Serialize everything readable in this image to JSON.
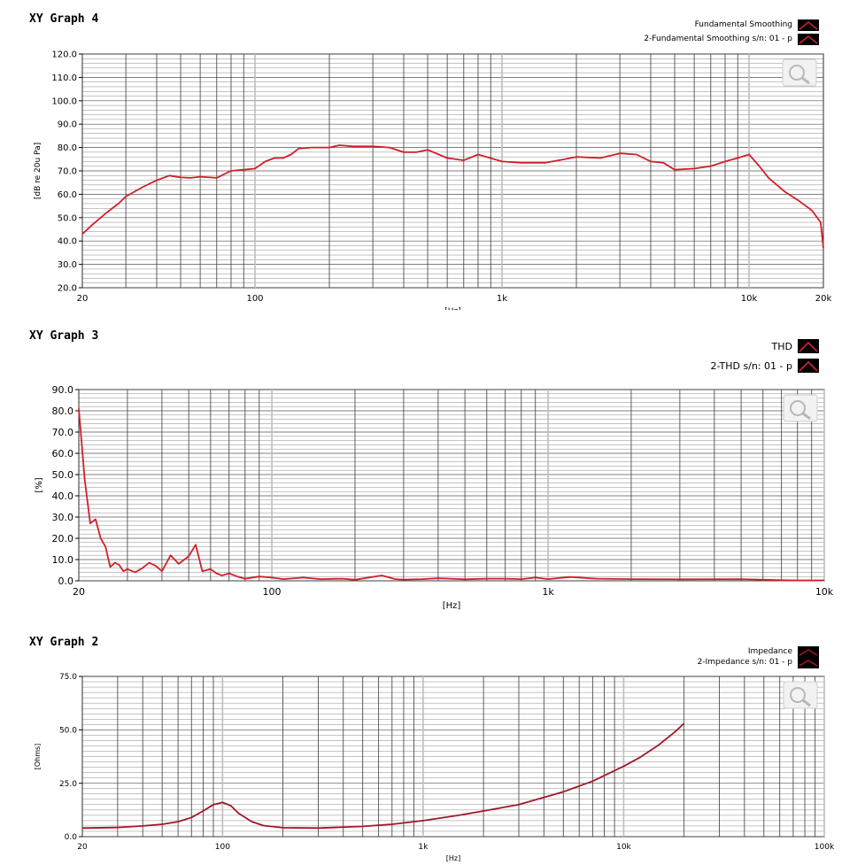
{
  "chart_data": [
    {
      "panel_title": "XY Graph 4",
      "type": "line",
      "x_scale": "log",
      "xlim": [
        20,
        20000
      ],
      "ylim": [
        20,
        120
      ],
      "y_ticks": [
        "20.0",
        "30.0",
        "40.0",
        "50.0",
        "60.0",
        "70.0",
        "80.0",
        "90.0",
        "100.0",
        "110.0",
        "120.0"
      ],
      "x_tick_labels": [
        {
          "v": 20,
          "label": "20"
        },
        {
          "v": 100,
          "label": "100"
        },
        {
          "v": 1000,
          "label": "1k"
        },
        {
          "v": 10000,
          "label": "10k"
        },
        {
          "v": 20000,
          "label": "20k"
        }
      ],
      "xlabel": "[Hz]",
      "ylabel": "[dB re 20u Pa]",
      "grid": true,
      "legend_position": "top-right",
      "legend": [
        "Fundamental Smoothing",
        "2-Fundamental Smoothing s/n: 01 - p"
      ],
      "line_color": "#d0202a",
      "x": [
        20,
        22,
        25,
        28,
        30,
        35,
        40,
        45,
        50,
        55,
        60,
        70,
        80,
        90,
        100,
        110,
        120,
        130,
        140,
        150,
        170,
        200,
        220,
        250,
        300,
        350,
        400,
        450,
        500,
        600,
        700,
        800,
        1000,
        1200,
        1500,
        1800,
        2000,
        2500,
        3000,
        3500,
        4000,
        4500,
        5000,
        6000,
        7000,
        8000,
        9000,
        10000,
        11000,
        12000,
        14000,
        16000,
        18000,
        19500,
        20000
      ],
      "y": [
        43,
        47,
        52,
        56,
        59,
        63,
        66,
        68,
        67.2,
        67,
        67.5,
        67,
        70,
        70.5,
        71,
        74,
        75.5,
        75.5,
        77,
        79.5,
        80,
        80,
        81,
        80.5,
        80.5,
        80,
        78,
        78,
        79,
        75.5,
        74.5,
        77,
        74,
        73.5,
        73.5,
        75,
        76,
        75.5,
        77.5,
        77,
        74,
        73.5,
        70.5,
        71,
        72,
        74,
        75.5,
        77,
        72,
        67,
        61,
        57,
        53,
        48,
        37
      ]
    },
    {
      "panel_title": "XY Graph 3",
      "type": "line",
      "x_scale": "log",
      "xlim": [
        20,
        10000
      ],
      "ylim": [
        0,
        90
      ],
      "y_ticks": [
        "0.0",
        "10.0",
        "20.0",
        "30.0",
        "40.0",
        "50.0",
        "60.0",
        "70.0",
        "80.0",
        "90.0"
      ],
      "x_tick_labels": [
        {
          "v": 20,
          "label": "20"
        },
        {
          "v": 100,
          "label": "100"
        },
        {
          "v": 1000,
          "label": "1k"
        },
        {
          "v": 10000,
          "label": "10k"
        }
      ],
      "xlabel": "[Hz]",
      "ylabel": "[%]",
      "grid": true,
      "legend_position": "top-right",
      "legend": [
        "THD",
        "2-THD s/n: 01 - p"
      ],
      "line_color": "#d0202a",
      "x": [
        20,
        21,
        22,
        23,
        24,
        25,
        26,
        27,
        28,
        29,
        30,
        32,
        34,
        36,
        38,
        40,
        43,
        46,
        50,
        53,
        56,
        60,
        63,
        66,
        70,
        75,
        80,
        90,
        100,
        110,
        130,
        150,
        180,
        200,
        250,
        280,
        300,
        350,
        400,
        500,
        600,
        700,
        800,
        900,
        1000,
        1200,
        1500,
        2000,
        3000,
        5000,
        7000,
        8000,
        10000
      ],
      "y": [
        81,
        48,
        27,
        29,
        20,
        16,
        6.5,
        8.5,
        7.5,
        4.5,
        5.5,
        4,
        6,
        8.5,
        7,
        4.5,
        12,
        8,
        11.5,
        17,
        4.5,
        5.5,
        3.5,
        2.5,
        3.5,
        2,
        1,
        2,
        1.5,
        0.8,
        1.5,
        0.8,
        1,
        0.5,
        2.5,
        0.8,
        0.6,
        0.8,
        1.2,
        0.7,
        1,
        1,
        0.8,
        1.5,
        0.8,
        1.8,
        1,
        0.8,
        0.7,
        0.8,
        0.3,
        0.2,
        0.2
      ]
    },
    {
      "panel_title": "XY Graph 2",
      "type": "line",
      "x_scale": "log",
      "xlim": [
        20,
        100000
      ],
      "ylim": [
        0,
        75
      ],
      "y_ticks": [
        "0.0",
        "25.0",
        "50.0",
        "75.0"
      ],
      "x_tick_labels": [
        {
          "v": 20,
          "label": "20"
        },
        {
          "v": 100,
          "label": "100"
        },
        {
          "v": 1000,
          "label": "1k"
        },
        {
          "v": 10000,
          "label": "10k"
        },
        {
          "v": 100000,
          "label": "100k"
        }
      ],
      "xlabel": "[Hz]",
      "ylabel": "[Ohms]",
      "grid": true,
      "legend_position": "top-right",
      "legend": [
        "Impedance",
        "2-Impedance s/n: 01 - p"
      ],
      "line_color": "#a01828",
      "x": [
        20,
        30,
        40,
        50,
        60,
        70,
        80,
        90,
        100,
        110,
        120,
        140,
        160,
        200,
        300,
        500,
        700,
        1000,
        1500,
        2000,
        3000,
        5000,
        7000,
        10000,
        12000,
        15000,
        18000,
        20000
      ],
      "y": [
        4,
        4.3,
        5,
        5.8,
        7,
        9,
        12,
        15,
        16,
        14.5,
        11,
        7,
        5.2,
        4.2,
        4,
        4.8,
        5.8,
        7.5,
        10,
        12,
        15,
        21,
        26,
        33,
        37,
        43,
        49,
        53
      ]
    }
  ]
}
